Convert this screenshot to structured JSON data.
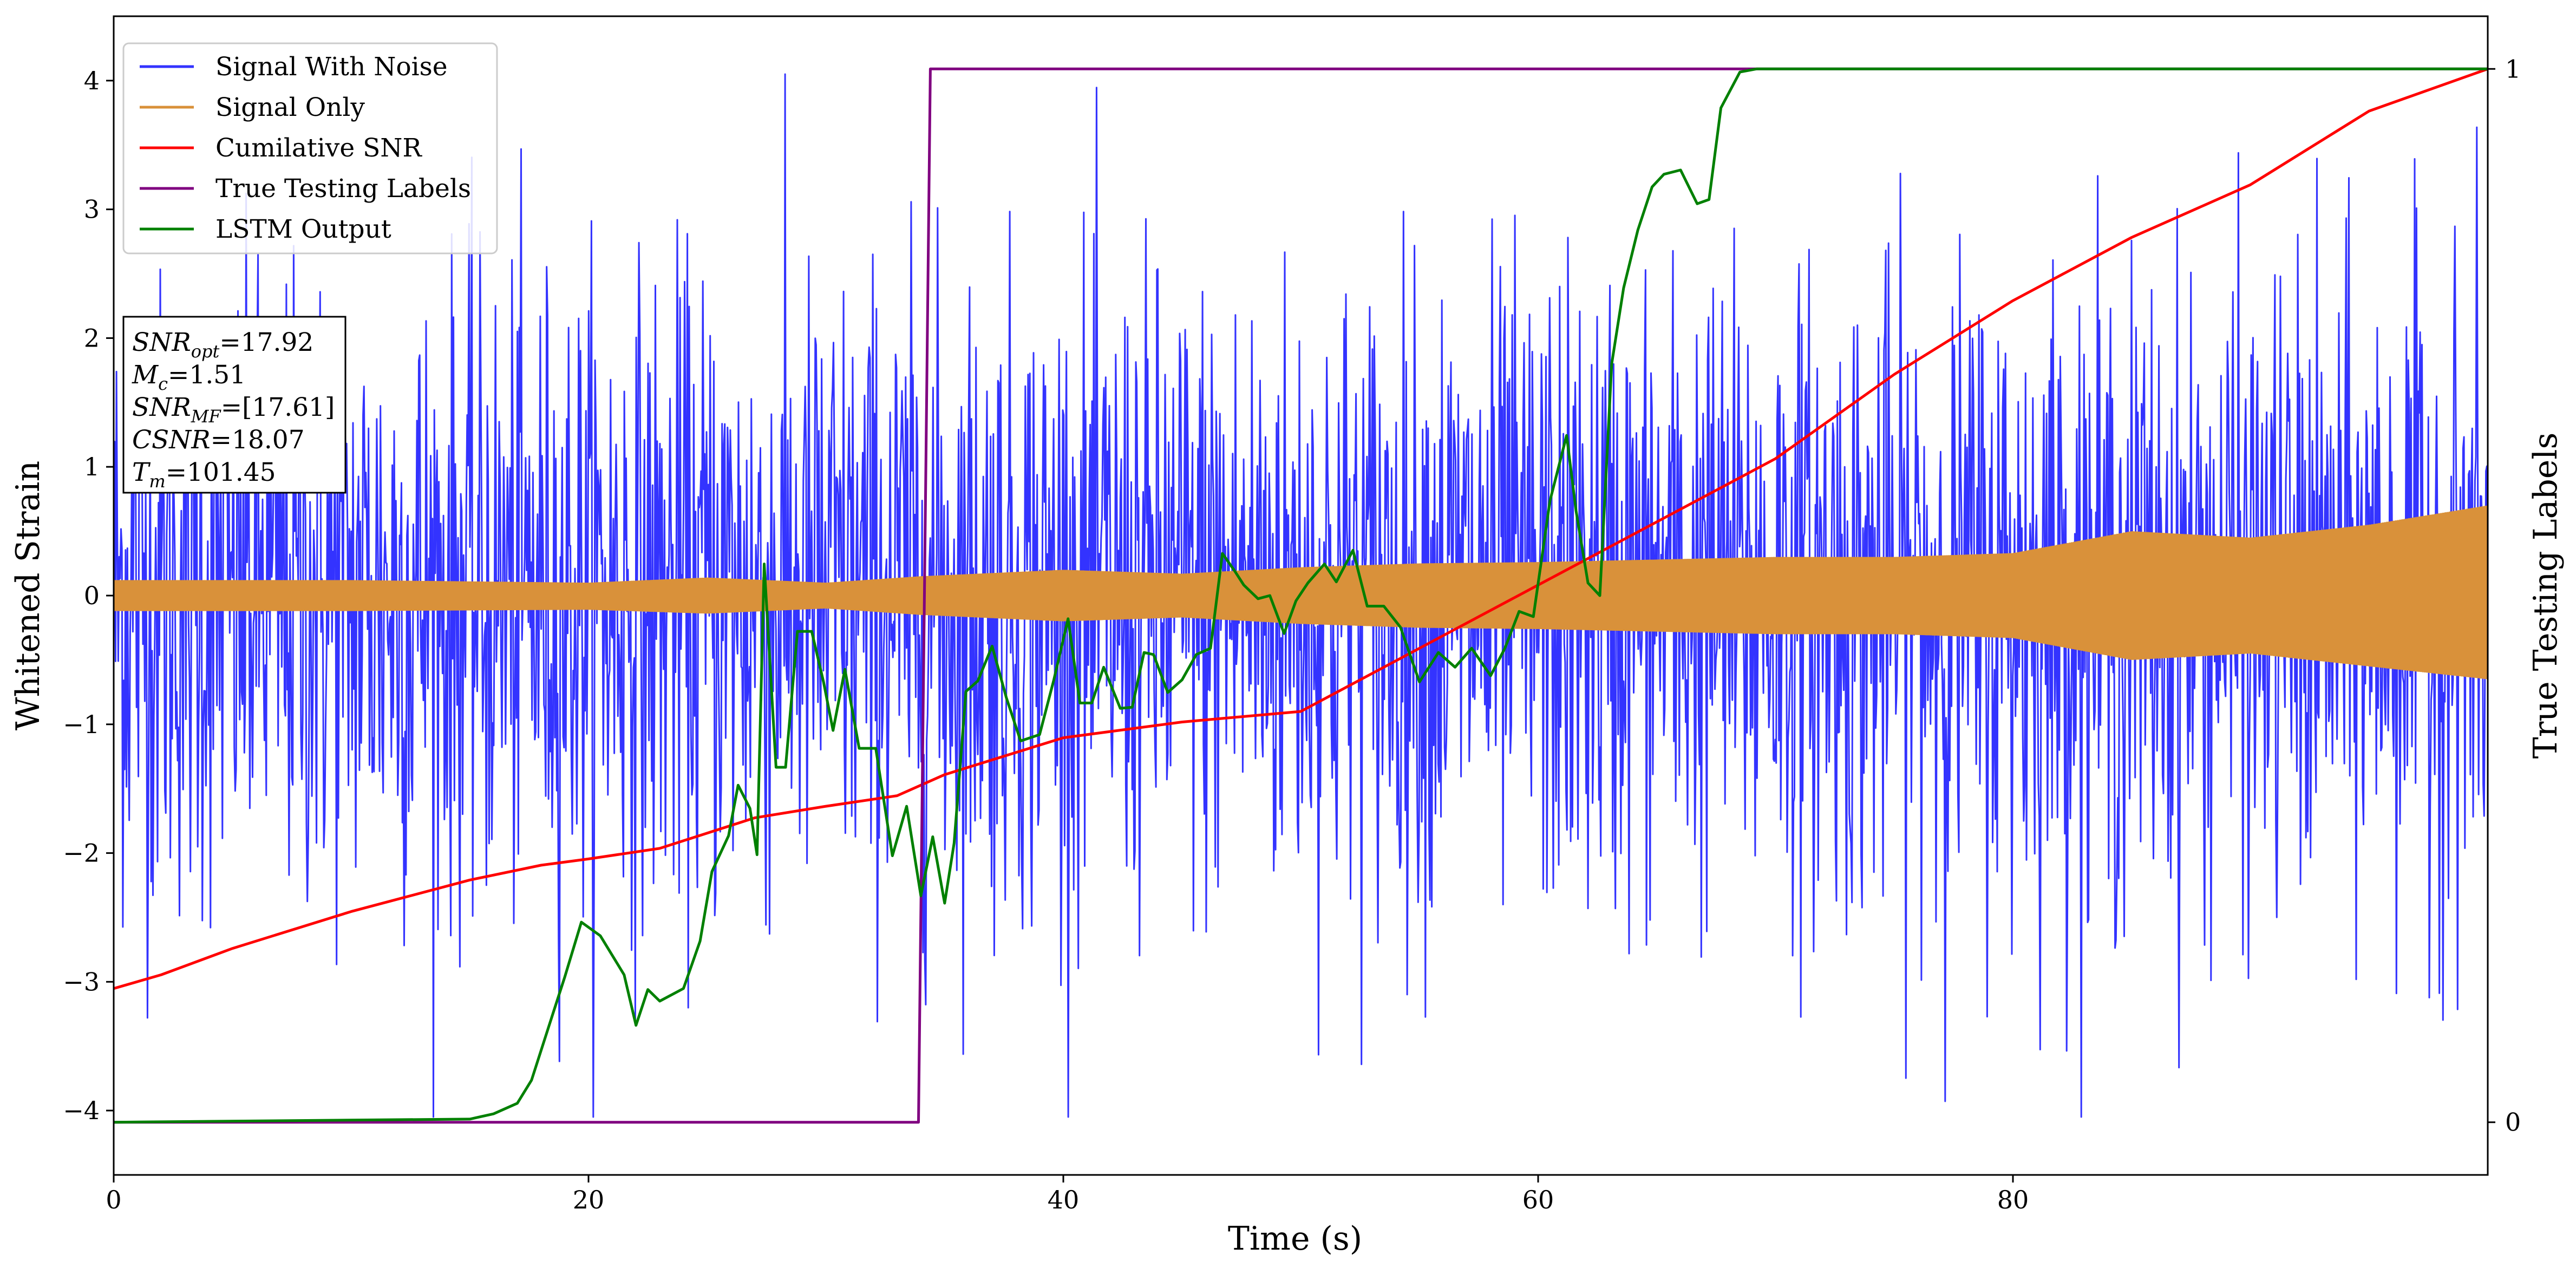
{
  "chart_data": {
    "type": "line",
    "xlabel": "Time (s)",
    "ylabel": "Whitened Strain",
    "y2label": "True Testing Labels",
    "xlim": [
      0,
      100
    ],
    "ylim": [
      -4.5,
      4.5
    ],
    "y2lim": [
      -0.05,
      1.05
    ],
    "x_ticks": [
      0,
      20,
      40,
      60,
      80
    ],
    "y_ticks": [
      -4,
      -3,
      -2,
      -1,
      0,
      1,
      2,
      3,
      4
    ],
    "y2_ticks": [
      0,
      1
    ],
    "grid": false,
    "legend_placement": "top-left",
    "colors": {
      "signal_with_noise": "#3333ff",
      "signal_only": "#d9913a",
      "cumulative_snr": "#ff0000",
      "true_labels": "#800080",
      "lstm_output": "#008000"
    },
    "series": [
      {
        "name": "Signal With Noise",
        "axis": "left",
        "description_values": "noise band spanning roughly -4 to 4",
        "approx_envelope": {
          "x": [
            0,
            100
          ],
          "upper": [
            4.0,
            4.0
          ],
          "lower": [
            -4.0,
            -4.0
          ]
        }
      },
      {
        "name": "Signal Only",
        "axis": "left",
        "envelope": {
          "x": [
            0,
            10,
            20,
            25,
            30,
            34,
            40,
            45,
            50,
            55,
            60,
            65,
            70,
            75,
            80,
            85,
            90,
            95,
            100
          ],
          "upper": [
            0.12,
            0.12,
            0.1,
            0.14,
            0.1,
            0.15,
            0.2,
            0.17,
            0.22,
            0.25,
            0.26,
            0.28,
            0.3,
            0.3,
            0.33,
            0.5,
            0.45,
            0.55,
            0.7
          ],
          "lower": [
            -0.12,
            -0.12,
            -0.11,
            -0.14,
            -0.1,
            -0.15,
            -0.2,
            -0.17,
            -0.22,
            -0.25,
            -0.26,
            -0.28,
            -0.3,
            -0.3,
            -0.33,
            -0.5,
            -0.45,
            -0.55,
            -0.65
          ]
        }
      },
      {
        "name": "Cumilative SNR",
        "axis": "right",
        "x": [
          0,
          2,
          5,
          10,
          15,
          18,
          20,
          23,
          27,
          30,
          33,
          35,
          40,
          45,
          50,
          55,
          60,
          65,
          70,
          75,
          80,
          85,
          90,
          95,
          100
        ],
        "y": [
          0.127,
          0.14,
          0.165,
          0.2,
          0.23,
          0.244,
          0.25,
          0.26,
          0.289,
          0.3,
          0.31,
          0.33,
          0.365,
          0.38,
          0.39,
          0.45,
          0.51,
          0.57,
          0.63,
          0.71,
          0.78,
          0.84,
          0.89,
          0.96,
          1.0
        ]
      },
      {
        "name": "True Testing Labels",
        "axis": "right",
        "x": [
          0,
          33.9,
          34.4,
          100
        ],
        "y": [
          0,
          0,
          1,
          1
        ]
      },
      {
        "name": "LSTM Output",
        "axis": "right",
        "x": [
          0,
          10,
          15,
          16,
          17,
          17.6,
          18.5,
          19,
          19.7,
          20.5,
          21.5,
          22,
          22.5,
          23,
          24,
          24.7,
          25.2,
          25.9,
          26.3,
          26.8,
          27.1,
          27.4,
          27.9,
          28.3,
          28.8,
          29.4,
          29.9,
          30.3,
          30.8,
          31.4,
          32.1,
          32.8,
          33.4,
          34,
          34.5,
          35,
          35.4,
          35.9,
          36.4,
          37,
          37.6,
          38.2,
          39,
          39.6,
          40.2,
          40.7,
          41.2,
          41.7,
          42.4,
          42.9,
          43.4,
          43.8,
          44.4,
          45,
          45.6,
          46.2,
          46.7,
          47.2,
          47.6,
          48.2,
          48.7,
          49.3,
          49.8,
          50.3,
          51,
          51.5,
          52.2,
          52.8,
          53.5,
          54.2,
          55,
          55.8,
          56.5,
          57.2,
          58,
          58.6,
          59.2,
          59.8,
          60.5,
          61.2,
          61.6,
          62.1,
          62.6,
          63.1,
          63.6,
          64.2,
          64.8,
          65.3,
          66,
          66.7,
          67.2,
          67.7,
          68.5,
          69.2,
          69.8,
          70.5,
          71.5,
          80,
          100
        ],
        "y": [
          0,
          0.002,
          0.003,
          0.008,
          0.018,
          0.04,
          0.103,
          0.138,
          0.19,
          0.177,
          0.14,
          0.092,
          0.126,
          0.115,
          0.127,
          0.172,
          0.238,
          0.272,
          0.32,
          0.298,
          0.254,
          0.53,
          0.337,
          0.337,
          0.466,
          0.466,
          0.418,
          0.372,
          0.43,
          0.355,
          0.355,
          0.253,
          0.3,
          0.215,
          0.271,
          0.208,
          0.265,
          0.409,
          0.419,
          0.452,
          0.403,
          0.362,
          0.368,
          0.42,
          0.478,
          0.398,
          0.398,
          0.432,
          0.393,
          0.394,
          0.446,
          0.444,
          0.408,
          0.42,
          0.444,
          0.45,
          0.54,
          0.524,
          0.51,
          0.497,
          0.5,
          0.464,
          0.495,
          0.512,
          0.53,
          0.513,
          0.543,
          0.49,
          0.49,
          0.47,
          0.418,
          0.446,
          0.432,
          0.45,
          0.424,
          0.45,
          0.485,
          0.48,
          0.59,
          0.652,
          0.58,
          0.512,
          0.5,
          0.72,
          0.792,
          0.847,
          0.888,
          0.9,
          0.904,
          0.872,
          0.876,
          0.963,
          0.997,
          1.0,
          1.0,
          1.0,
          1.0,
          1.0,
          1.0
        ]
      }
    ],
    "annotation": {
      "lines": [
        {
          "var": "SNR",
          "sub": "opt",
          "value": "=17.92"
        },
        {
          "var": "M",
          "sub": "c",
          "value": "=1.51"
        },
        {
          "var": "SNR",
          "sub": "MF",
          "value": "=[17.61]"
        },
        {
          "var": "CSNR",
          "sub": "",
          "value": "=18.07"
        },
        {
          "var": "T",
          "sub": "m",
          "value": "=101.45"
        }
      ]
    }
  }
}
